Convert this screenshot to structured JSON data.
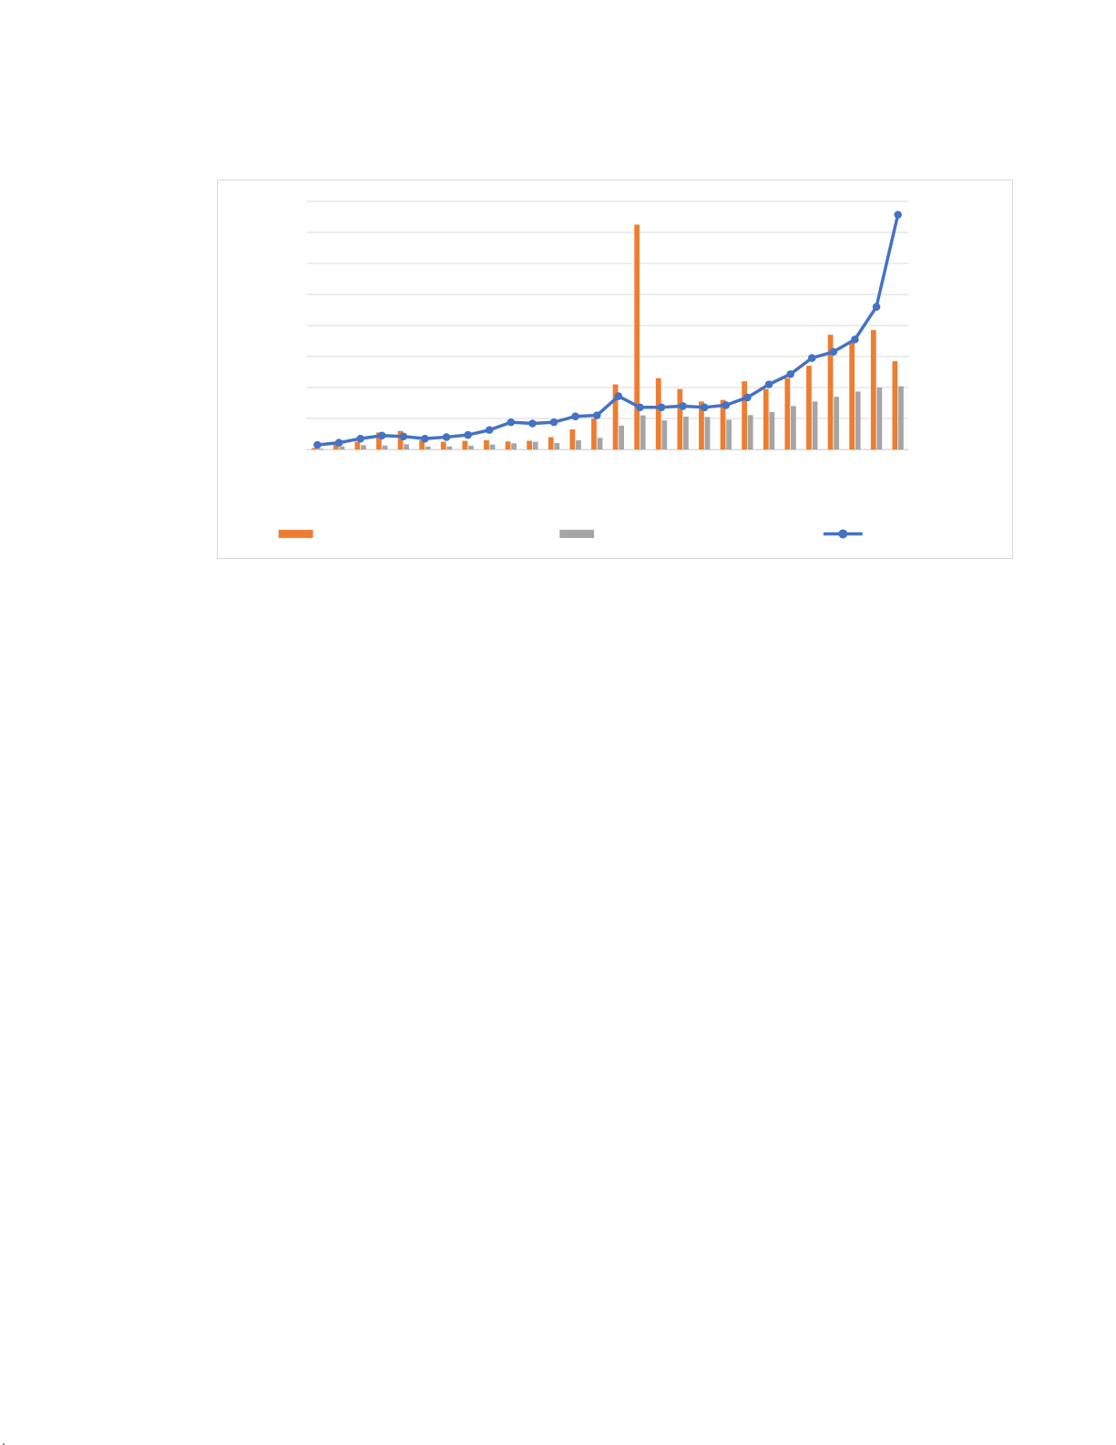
{
  "page": {
    "background": "#ffffff"
  },
  "chart_card": {
    "background": "#ffffff",
    "border_color": "#d9d9d9"
  },
  "chart_data": {
    "type": "combo",
    "title": "",
    "xlabel": "",
    "ylabel": "",
    "x": [
      1,
      2,
      3,
      4,
      5,
      6,
      7,
      8,
      9,
      10,
      11,
      12,
      13,
      14,
      15,
      16,
      17,
      18,
      19,
      20,
      21,
      22,
      23,
      24,
      25,
      26,
      27,
      28
    ],
    "x_tick_labels_visible": false,
    "y_tick_labels_visible": false,
    "ylim": [
      0,
      8
    ],
    "gridline_count": 9,
    "grid_on": true,
    "grid_color": "#d9d9d9",
    "axis_color": "#c6c6c6",
    "series": [
      {
        "name": "",
        "type": "bar",
        "color": "#ED7D31",
        "values": [
          0.05,
          0.15,
          0.25,
          0.55,
          0.6,
          0.3,
          0.25,
          0.28,
          0.3,
          0.26,
          0.28,
          0.4,
          0.65,
          1.0,
          2.1,
          7.25,
          2.3,
          1.95,
          1.55,
          1.6,
          2.2,
          1.95,
          2.3,
          2.7,
          3.7,
          3.45,
          3.85,
          2.85
        ]
      },
      {
        "name": "",
        "type": "bar",
        "color": "#A5A5A5",
        "values": [
          0.03,
          0.1,
          0.14,
          0.13,
          0.17,
          0.1,
          0.1,
          0.12,
          0.16,
          0.2,
          0.25,
          0.21,
          0.3,
          0.38,
          0.77,
          1.1,
          0.94,
          1.06,
          1.05,
          0.96,
          1.11,
          1.21,
          1.4,
          1.55,
          1.7,
          1.87,
          2.0,
          2.04
        ]
      },
      {
        "name": "",
        "type": "line",
        "color": "#4472C4",
        "marker": "circle",
        "values": [
          0.15,
          0.22,
          0.35,
          0.45,
          0.42,
          0.35,
          0.4,
          0.47,
          0.63,
          0.88,
          0.84,
          0.88,
          1.07,
          1.1,
          1.72,
          1.36,
          1.36,
          1.4,
          1.36,
          1.43,
          1.68,
          2.1,
          2.43,
          2.95,
          3.15,
          3.55,
          4.6,
          7.57
        ]
      }
    ],
    "legend": {
      "position": "bottom",
      "labels_visible": false,
      "items": [
        {
          "label": "",
          "swatch": "bar",
          "color": "#ED7D31"
        },
        {
          "label": "",
          "swatch": "bar",
          "color": "#A5A5A5"
        },
        {
          "label": "",
          "swatch": "line-marker",
          "color": "#4472C4"
        }
      ]
    }
  },
  "stray_mark": {
    "glyph": "."
  }
}
